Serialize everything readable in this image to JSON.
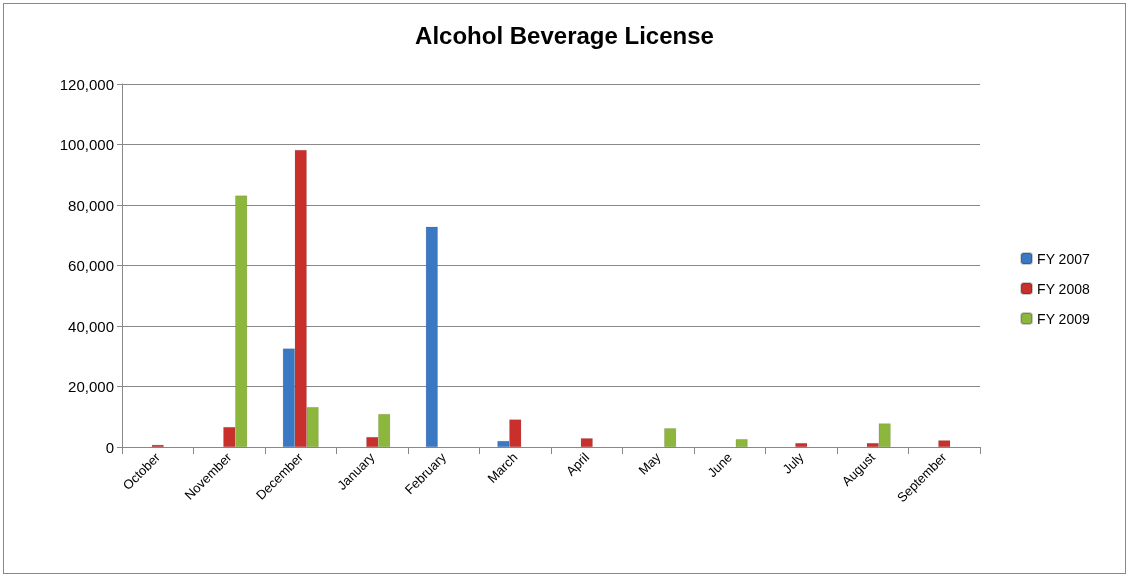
{
  "chart_data": {
    "type": "bar",
    "title": "Alcohol Beverage License",
    "categories": [
      "October",
      "November",
      "December",
      "January",
      "February",
      "March",
      "April",
      "May",
      "June",
      "July",
      "August",
      "September"
    ],
    "series": [
      {
        "name": "FY 2007",
        "color": "#3b78c4",
        "values": [
          null,
          null,
          32600,
          null,
          72800,
          2000,
          null,
          null,
          null,
          null,
          null,
          null
        ]
      },
      {
        "name": "FY 2008",
        "color": "#c9302c",
        "values": [
          700,
          6600,
          98200,
          3300,
          null,
          9100,
          2900,
          null,
          null,
          1300,
          1300,
          2200
        ]
      },
      {
        "name": "FY 2009",
        "color": "#8db63c",
        "values": [
          null,
          83100,
          13200,
          10900,
          null,
          null,
          null,
          6200,
          2600,
          null,
          7800,
          null
        ]
      }
    ],
    "ylim": [
      0,
      120000
    ],
    "yticks": [
      0,
      {
        "value": 20000,
        "label": "20,000"
      },
      {
        "value": 40000,
        "label": "40,000"
      },
      {
        "value": 60000,
        "label": "60,000"
      },
      {
        "value": 80000,
        "label": "80,000"
      },
      {
        "value": 100000,
        "label": "100,000"
      },
      {
        "value": 120000,
        "label": "120,000"
      }
    ],
    "grid": "y",
    "legend": "right"
  }
}
